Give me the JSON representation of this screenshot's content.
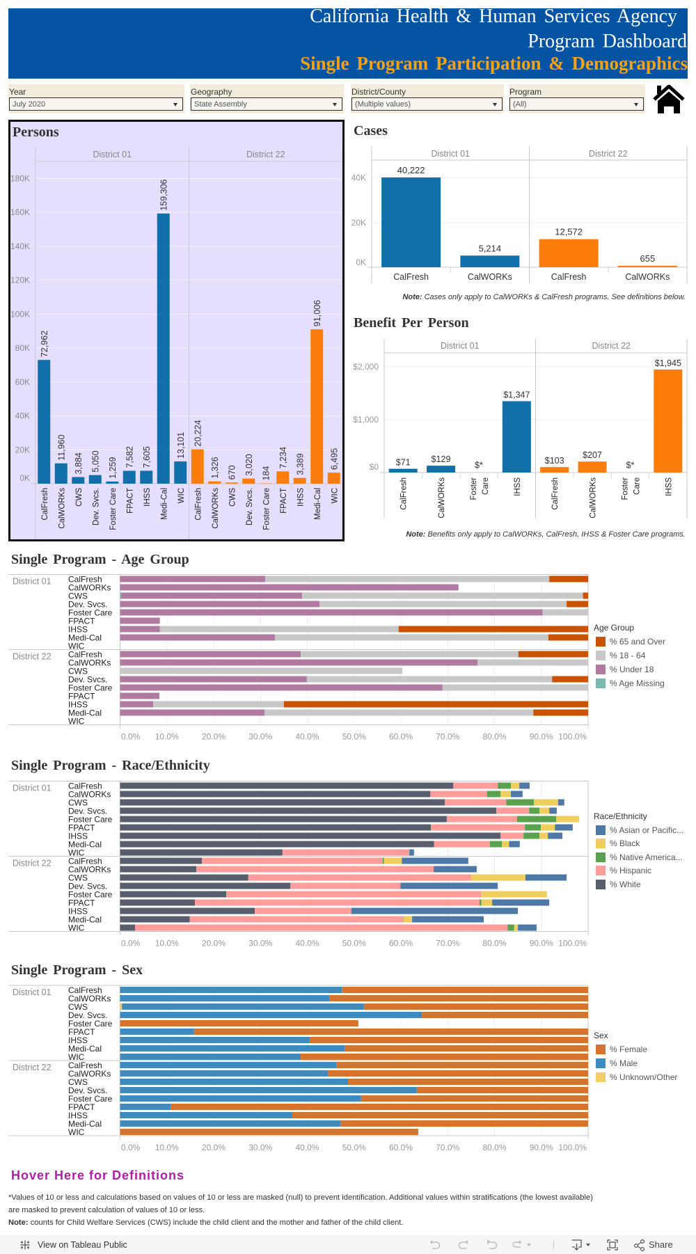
{
  "header": {
    "agency": "California Health & Human Services Agency",
    "dashboard": "Program Dashboard",
    "subtitle": "Single Program Participation & Demographics"
  },
  "filters": [
    {
      "label": "Year",
      "value": "July 2020"
    },
    {
      "label": "Geography",
      "value": "State Assembly"
    },
    {
      "label": "District/County",
      "value": "(Multiple values)"
    },
    {
      "label": "Program",
      "value": "(All)"
    }
  ],
  "icons": {
    "home": "home-icon",
    "dropdown": "dropdown-arrow-icon",
    "tableau": "tableau-logo-icon"
  },
  "colors": {
    "banner": "#0553a3",
    "subtitle": "#f5a316",
    "persons_panel": "#e6deff",
    "district_01": "#1170aa",
    "district_22": "#fc7d0b",
    "definitions_link": "#b01ea6"
  },
  "chart_data": [
    {
      "id": "persons",
      "type": "bar",
      "title": "Persons",
      "xlabel": "",
      "ylabel": "",
      "grid": true,
      "facets": [
        "District 01",
        "District 22"
      ],
      "categories": [
        "CalFresh",
        "CalWORKs",
        "CWS",
        "Dev. Svcs.",
        "Foster Care",
        "FPACT",
        "IHSS",
        "Medi-Cal",
        "WIC"
      ],
      "series": [
        {
          "name": "District 01",
          "color": "#1170aa",
          "values": [
            72962,
            11960,
            3884,
            5050,
            1259,
            7582,
            7605,
            159306,
            13101
          ],
          "labels": [
            "72,962",
            "11,960",
            "3,884",
            "5,050",
            "1,259",
            "7,582",
            "7,605",
            "159,306",
            "13,101"
          ]
        },
        {
          "name": "District 22",
          "color": "#fc7d0b",
          "values": [
            20224,
            1326,
            670,
            3020,
            184,
            7234,
            3389,
            91006,
            6495
          ],
          "labels": [
            "20,224",
            "1,326",
            "670",
            "3,020",
            "184",
            "7,234",
            "3,389",
            "91,006",
            "6,495"
          ]
        }
      ],
      "yticks": [
        {
          "value": 0,
          "label": "0K"
        },
        {
          "value": 20000,
          "label": "20K"
        },
        {
          "value": 40000,
          "label": "40K"
        },
        {
          "value": 60000,
          "label": "60K"
        },
        {
          "value": 80000,
          "label": "80K"
        },
        {
          "value": 100000,
          "label": "100K"
        },
        {
          "value": 120000,
          "label": "120K"
        },
        {
          "value": 140000,
          "label": "140K"
        },
        {
          "value": 160000,
          "label": "160K"
        },
        {
          "value": 180000,
          "label": "180K"
        }
      ],
      "ylim": [
        0,
        190000
      ]
    },
    {
      "id": "cases",
      "type": "bar",
      "title": "Cases",
      "xlabel": "",
      "ylabel": "",
      "grid": true,
      "facets": [
        "District 01",
        "District 22"
      ],
      "categories": [
        "CalFresh",
        "CalWORKs"
      ],
      "series": [
        {
          "name": "District 01",
          "color": "#1170aa",
          "values": [
            40222,
            5214
          ],
          "labels": [
            "40,222",
            "5,214"
          ]
        },
        {
          "name": "District 22",
          "color": "#fc7d0b",
          "values": [
            12572,
            655
          ],
          "labels": [
            "12,572",
            "655"
          ]
        }
      ],
      "yticks": [
        {
          "value": 0,
          "label": "0K"
        },
        {
          "value": 20000,
          "label": "20K"
        },
        {
          "value": 40000,
          "label": "40K"
        }
      ],
      "ylim": [
        0,
        48000
      ],
      "note_label": "Note:",
      "note_text": " Cases only apply to CalWORKs & CalFresh programs. See definitions below."
    },
    {
      "id": "benefit_per_person",
      "type": "bar",
      "title": "Benefit Per Person",
      "xlabel": "",
      "ylabel": "",
      "grid": true,
      "facets": [
        "District 01",
        "District 22"
      ],
      "categories": [
        "CalFresh",
        "CalWORKs",
        "Foster Care",
        "IHSS"
      ],
      "category_lines": [
        [
          "CalFresh"
        ],
        [
          "CalWORKs"
        ],
        [
          "Foster",
          "Care"
        ],
        [
          "IHSS"
        ]
      ],
      "series": [
        {
          "name": "District 01",
          "color": "#1170aa",
          "values": [
            71,
            129,
            null,
            1347
          ],
          "labels": [
            "$71",
            "$129",
            "$*",
            "$1,347"
          ]
        },
        {
          "name": "District 22",
          "color": "#fc7d0b",
          "values": [
            103,
            207,
            null,
            1945
          ],
          "labels": [
            "$103",
            "$207",
            "$*",
            "$1,945"
          ]
        }
      ],
      "yticks": [
        {
          "value": 0,
          "label": "$0"
        },
        {
          "value": 1000,
          "label": "$1,000"
        },
        {
          "value": 2000,
          "label": "$2,000"
        }
      ],
      "ylim": [
        0,
        2260
      ],
      "note_label": "Note:",
      "note_text": " Benefits only apply to CalWORKs, CalFresh, IHSS & Foster Care programs."
    },
    {
      "id": "age_group",
      "type": "bar",
      "orientation": "horizontal",
      "stacked": "percent",
      "title": "Single Program - Age Group",
      "xlabel": "",
      "ylabel": "",
      "grid": true,
      "legend_title": "Age Group",
      "legend_position": "right",
      "facets": [
        "District 01",
        "District 22"
      ],
      "categories": [
        "CalFresh",
        "CalWORKs",
        "CWS",
        "Dev. Svcs.",
        "Foster Care",
        "FPACT",
        "IHSS",
        "Medi-Cal",
        "WIC"
      ],
      "series": [
        {
          "name": "% 65 and Over",
          "color": "#c85200",
          "values": [
            [
              8.3,
              null,
              1.1,
              4.6,
              null,
              null,
              40.5,
              8.5,
              null
            ],
            [
              14.9,
              null,
              null,
              7.7,
              null,
              null,
              65.0,
              11.7,
              null
            ]
          ]
        },
        {
          "name": "% 18 - 64",
          "color": "#c8c8c8",
          "values": [
            [
              60.7,
              null,
              60.0,
              52.8,
              9.7,
              null,
              51.0,
              58.4,
              null
            ],
            [
              46.5,
              23.6,
              60.3,
              52.4,
              31.1,
              null,
              27.9,
              57.4,
              null
            ]
          ]
        },
        {
          "name": "% Under 18",
          "color": "#b07aa1",
          "values": [
            [
              31.0,
              72.3,
              38.6,
              42.6,
              90.3,
              8.5,
              8.5,
              33.1,
              null
            ],
            [
              38.6,
              76.4,
              null,
              39.9,
              68.9,
              8.4,
              7.1,
              30.9,
              null
            ]
          ]
        },
        {
          "name": "% Age Missing",
          "color": "#7ab8b2",
          "values": [
            [
              null,
              null,
              0.3,
              null,
              null,
              null,
              null,
              null,
              null
            ],
            [
              null,
              null,
              null,
              null,
              null,
              null,
              null,
              null,
              null
            ]
          ]
        }
      ],
      "xticks": [
        {
          "value": 0,
          "label": "0.0%"
        },
        {
          "value": 10,
          "label": "10.0%"
        },
        {
          "value": 20,
          "label": "20.0%"
        },
        {
          "value": 30,
          "label": "30.0%"
        },
        {
          "value": 40,
          "label": "40.0%"
        },
        {
          "value": 50,
          "label": "50.0%"
        },
        {
          "value": 60,
          "label": "60.0%"
        },
        {
          "value": 70,
          "label": "70.0%"
        },
        {
          "value": 80,
          "label": "80.0%"
        },
        {
          "value": 90,
          "label": "90.0%"
        },
        {
          "value": 100,
          "label": "100.0%"
        }
      ],
      "xlim": [
        0,
        100
      ]
    },
    {
      "id": "race_ethnicity",
      "type": "bar",
      "orientation": "horizontal",
      "stacked": "percent",
      "title": "Single Program - Race/Ethnicity",
      "xlabel": "",
      "ylabel": "",
      "grid": true,
      "legend_title": "Race/Ethnicity",
      "legend_position": "right",
      "facets": [
        "District 01",
        "District 22"
      ],
      "categories": [
        "CalFresh",
        "CalWORKs",
        "CWS",
        "Dev. Svcs.",
        "Foster Care",
        "FPACT",
        "IHSS",
        "Medi-Cal",
        "WIC"
      ],
      "series": [
        {
          "name": "% Asian or Pacific...",
          "color": "#4e79a7",
          "values": [
            [
              2.2,
              2.5,
              1.3,
              1.6,
              null,
              3.8,
              3.1,
              2.3,
              1.0
            ],
            [
              14.2,
              9.2,
              8.8,
              20.8,
              null,
              12.2,
              35.6,
              15.3,
              4.0
            ]
          ]
        },
        {
          "name": "% Black",
          "color": "#f0cd5f",
          "values": [
            [
              1.8,
              2.2,
              5.2,
              2.1,
              4.9,
              3.0,
              1.8,
              1.5,
              null
            ],
            [
              3.8,
              null,
              11.6,
              null,
              14.1,
              2.3,
              null,
              1.9,
              0.8
            ]
          ]
        },
        {
          "name": "% Native America...",
          "color": "#59a14f",
          "values": [
            [
              2.8,
              2.9,
              5.9,
              2.2,
              8.4,
              3.4,
              3.4,
              2.6,
              null
            ],
            [
              0.3,
              null,
              null,
              null,
              null,
              0.4,
              null,
              0.1,
              1.4
            ]
          ]
        },
        {
          "name": "% Hispanic",
          "color": "#ff9d9a",
          "values": [
            [
              9.5,
              12.1,
              13.1,
              7.0,
              15.0,
              20.1,
              4.9,
              11.9,
              27.1
            ],
            [
              38.6,
              50.7,
              47.6,
              23.5,
              54.4,
              60.8,
              20.6,
              45.5,
              79.6
            ]
          ]
        },
        {
          "name": "% White",
          "color": "#585e6b",
          "values": [
            [
              71.2,
              66.3,
              69.4,
              80.4,
              69.8,
              66.4,
              81.3,
              67.1,
              34.7
            ],
            [
              17.5,
              16.3,
              27.4,
              36.4,
              22.7,
              16.0,
              28.8,
              14.9,
              3.2
            ]
          ]
        }
      ],
      "xticks": [
        {
          "value": 0,
          "label": "0.0%"
        },
        {
          "value": 10,
          "label": "10.0%"
        },
        {
          "value": 20,
          "label": "20.0%"
        },
        {
          "value": 30,
          "label": "30.0%"
        },
        {
          "value": 40,
          "label": "40.0%"
        },
        {
          "value": 50,
          "label": "50.0%"
        },
        {
          "value": 60,
          "label": "60.0%"
        },
        {
          "value": 70,
          "label": "70.0%"
        },
        {
          "value": 80,
          "label": "80.0%"
        },
        {
          "value": 90,
          "label": "90.0%"
        },
        {
          "value": 100,
          "label": "100.0%"
        }
      ],
      "xlim": [
        0,
        100
      ]
    },
    {
      "id": "sex",
      "type": "bar",
      "orientation": "horizontal",
      "stacked": "percent",
      "title": "Single Program - Sex",
      "xlabel": "",
      "ylabel": "",
      "grid": true,
      "legend_title": "Sex",
      "legend_position": "right",
      "facets": [
        "District 01",
        "District 22"
      ],
      "categories": [
        "CalFresh",
        "CalWORKs",
        "CWS",
        "Dev. Svcs.",
        "Foster Care",
        "FPACT",
        "IHSS",
        "Medi-Cal",
        "WIC"
      ],
      "series": [
        {
          "name": "% Female",
          "color": "#d4742f",
          "values": [
            [
              52.6,
              55.3,
              47.9,
              35.5,
              50.9,
              84.2,
              59.5,
              52.0,
              61.4
            ],
            [
              53.8,
              55.5,
              51.3,
              36.6,
              48.5,
              89.2,
              63.2,
              52.9,
              63.7
            ]
          ]
        },
        {
          "name": "% Male",
          "color": "#3d8bc0",
          "values": [
            [
              47.4,
              44.7,
              51.7,
              64.5,
              null,
              15.8,
              40.5,
              48.0,
              38.6
            ],
            [
              46.2,
              44.5,
              48.7,
              63.4,
              51.5,
              10.8,
              36.8,
              47.1,
              null
            ]
          ]
        },
        {
          "name": "% Unknown/Other",
          "color": "#f1cf66",
          "values": [
            [
              null,
              null,
              0.4,
              null,
              null,
              null,
              null,
              null,
              null
            ],
            [
              null,
              null,
              null,
              null,
              null,
              null,
              null,
              null,
              null
            ]
          ]
        }
      ],
      "xticks": [
        {
          "value": 0,
          "label": "0.0%"
        },
        {
          "value": 10,
          "label": "10.0%"
        },
        {
          "value": 20,
          "label": "20.0%"
        },
        {
          "value": 30,
          "label": "30.0%"
        },
        {
          "value": 40,
          "label": "40.0%"
        },
        {
          "value": 50,
          "label": "50.0%"
        },
        {
          "value": 60,
          "label": "60.0%"
        },
        {
          "value": 70,
          "label": "70.0%"
        },
        {
          "value": 80,
          "label": "80.0%"
        },
        {
          "value": 90,
          "label": "90.0%"
        },
        {
          "value": 100,
          "label": "100.0%"
        }
      ],
      "xlim": [
        0,
        100
      ]
    }
  ],
  "definitions_link": "Hover Here for Definitions",
  "footnotes": {
    "mask_line1": "*Values of 10 or less and calculations based on values of 10 or less are masked (null) to prevent identification. Additional values within stratifications (the lowest available)",
    "mask_line2": "are masked to prevent calculation of values of 10 or less.",
    "note_label": "Note:",
    "note_text": " counts for Child Welfare Services (CWS) include the child client and the mother and father of the child client."
  },
  "footer": {
    "view_link": "View on Tableau Public",
    "share": "Share",
    "tools": [
      "undo-icon",
      "redo-icon",
      "revert-icon",
      "refresh-icon",
      "download-icon",
      "fullscreen-icon",
      "share-icon"
    ]
  }
}
